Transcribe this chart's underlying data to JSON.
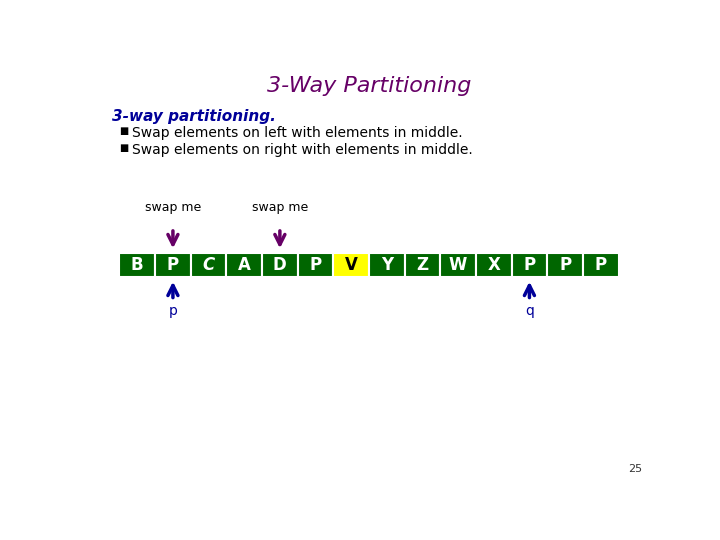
{
  "title": "3-Way Partitioning",
  "title_color": "#660066",
  "title_fontsize": 16,
  "subtitle": "3-way partitioning.",
  "subtitle_color": "#000099",
  "bullet1": "Swap elements on left with elements in middle.",
  "bullet2": "Swap elements on right with elements in middle.",
  "text_color": "#000000",
  "elements": [
    "B",
    "P",
    "C",
    "A",
    "D",
    "P",
    "V",
    "Y",
    "Z",
    "W",
    "X",
    "P",
    "P",
    "P"
  ],
  "box_color_default": "#006600",
  "box_color_highlight": "#ffff00",
  "highlight_index": 6,
  "text_color_boxes": "#ffffff",
  "text_color_highlight": "#000000",
  "swap_me_1_index": 1,
  "swap_me_2_index": 4,
  "arrow_p_index": 1,
  "arrow_q_index": 11,
  "arrow_color_down": "#660066",
  "arrow_color_up": "#000099",
  "label_p": "p",
  "label_q": "q",
  "page_number": "25",
  "background_color": "#ffffff"
}
